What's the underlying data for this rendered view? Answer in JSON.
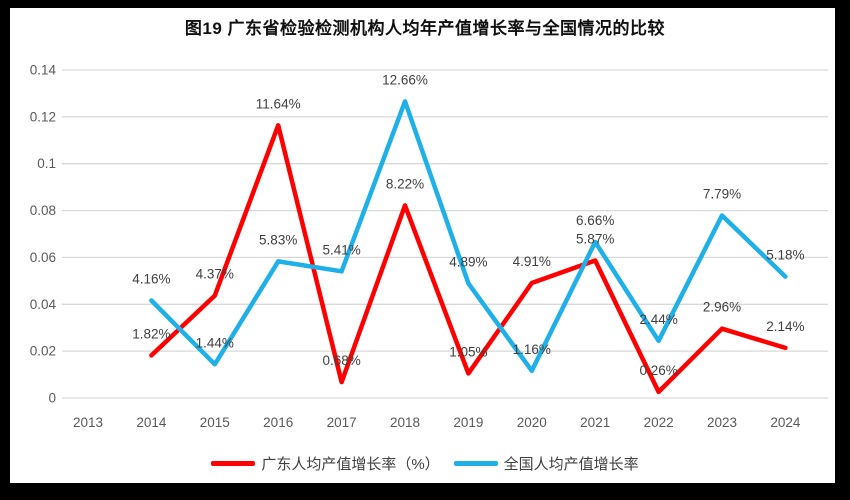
{
  "title": "图19  广东省检验检测机构人均年产值增长率与全国情况的比较",
  "chart_data": {
    "type": "line",
    "title": "图19  广东省检验检测机构人均年产值增长率与全国情况的比较",
    "categories": [
      "2013",
      "2014",
      "2015",
      "2016",
      "2017",
      "2018",
      "2019",
      "2020",
      "2021",
      "2022",
      "2023",
      "2024"
    ],
    "series": [
      {
        "name": "广东人均产值增长率（%）",
        "color": "#FE0000",
        "start_index": 1,
        "values": [
          0.0182,
          0.0437,
          0.1164,
          0.0068,
          0.0822,
          0.0105,
          0.0491,
          0.0587,
          0.0026,
          0.0296,
          0.0214
        ],
        "point_labels": [
          "1.82%",
          "4.37%",
          "11.64%",
          "0.68%",
          "8.22%",
          "1.05%",
          "4.91%",
          "5.87%",
          "0.26%",
          "2.96%",
          "2.14%"
        ]
      },
      {
        "name": "全国人均产值增长率",
        "color": "#1EB0E6",
        "start_index": 1,
        "values": [
          0.0416,
          0.0144,
          0.0583,
          0.0541,
          0.1266,
          0.0489,
          0.0116,
          0.0666,
          0.0244,
          0.0779,
          0.0518
        ],
        "point_labels": [
          "4.16%",
          "1.44%",
          "5.83%",
          "5.41%",
          "12.66%",
          "4.89%",
          "1.16%",
          "6.66%",
          "2.44%",
          "7.79%",
          "5.18%"
        ]
      }
    ],
    "ylim": [
      0,
      0.14
    ],
    "yticks": [
      0,
      0.02,
      0.04,
      0.06,
      0.08,
      0.1,
      0.12,
      0.14
    ],
    "ytick_labels": [
      "0",
      "0.02",
      "0.04",
      "0.06",
      "0.08",
      "0.1",
      "0.12",
      "0.14"
    ],
    "grid": true,
    "gridline_color": "#D9D9D9",
    "axis_label_color": "#595959",
    "data_label_color": "#3F3F3F",
    "legend_position": "bottom"
  },
  "legend": {
    "items": [
      {
        "label": "广东人均产值增长率（%）",
        "color": "#FE0000"
      },
      {
        "label": "全国人均产值增长率",
        "color": "#1EB0E6"
      }
    ]
  }
}
